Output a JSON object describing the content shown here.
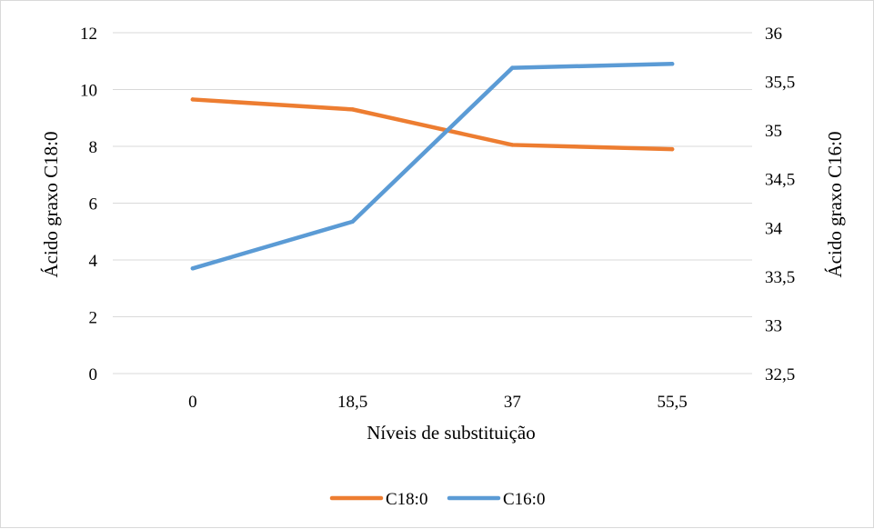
{
  "chart_data": {
    "type": "line",
    "xlabel": "Níveis de substituição",
    "ylabel": "Ácido graxo C18:0",
    "y2label": "Ácido graxo C16:0",
    "categories": [
      "0",
      "18,5",
      "37",
      "55,5"
    ],
    "ylim": [
      0,
      12
    ],
    "yticks": [
      "0",
      "2",
      "4",
      "6",
      "8",
      "10",
      "12"
    ],
    "y2lim": [
      32.5,
      36
    ],
    "y2ticks": [
      "32,5",
      "33",
      "33,5",
      "34",
      "34,5",
      "35",
      "35,5",
      "36"
    ],
    "grid": true,
    "legend_position": "bottom",
    "series": [
      {
        "name": "C18:0",
        "axis": "left",
        "color": "#ED7D31",
        "values": [
          9.65,
          9.3,
          8.05,
          7.9
        ]
      },
      {
        "name": "C16:0",
        "axis": "right",
        "color": "#5B9BD5",
        "values": [
          33.58,
          34.06,
          35.64,
          35.68
        ]
      }
    ]
  }
}
